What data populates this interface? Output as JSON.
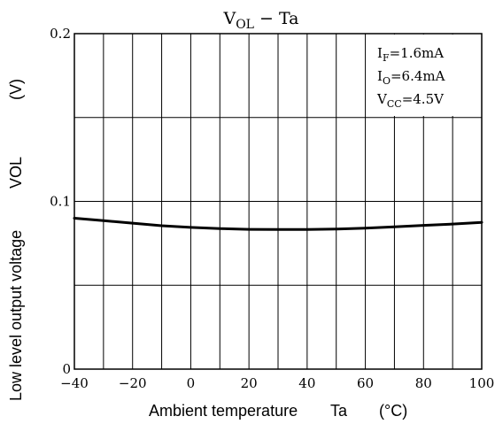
{
  "chart_data": {
    "type": "line",
    "title": {
      "main": "V",
      "sub": "OL",
      "rest": " − Ta"
    },
    "xlabel": {
      "text": "Ambient temperature",
      "symbol": "Ta",
      "unit": "(°C)"
    },
    "ylabel": {
      "text": "Low level output voltage",
      "symbol": "VOL",
      "unit": "(V)"
    },
    "xlim": [
      -40,
      100
    ],
    "ylim": [
      0,
      0.2
    ],
    "x_ticks": [
      {
        "value": -40,
        "label": "−40"
      },
      {
        "value": -20,
        "label": "−20"
      },
      {
        "value": 0,
        "label": "0"
      },
      {
        "value": 20,
        "label": "20"
      },
      {
        "value": 40,
        "label": "40"
      },
      {
        "value": 60,
        "label": "60"
      },
      {
        "value": 80,
        "label": "80"
      },
      {
        "value": 100,
        "label": "100"
      }
    ],
    "y_ticks": [
      {
        "value": 0,
        "label": "0"
      },
      {
        "value": 0.1,
        "label": "0.1"
      },
      {
        "value": 0.2,
        "label": "0.2"
      }
    ],
    "x_grid_step": 10,
    "y_grid_step": 0.05,
    "grid": true,
    "conditions": [
      {
        "main": "I",
        "sub": "F",
        "rest": "=1.6mA"
      },
      {
        "main": "I",
        "sub": "O",
        "rest": "=6.4mA"
      },
      {
        "main": "V",
        "sub": "CC",
        "rest": "=4.5V"
      }
    ],
    "conditions_position": "top-right",
    "series": [
      {
        "x": [
          -40,
          -30,
          -20,
          -10,
          0,
          10,
          20,
          30,
          40,
          50,
          60,
          70,
          80,
          90,
          100
        ],
        "values": [
          0.09,
          0.0885,
          0.087,
          0.0855,
          0.0845,
          0.0838,
          0.0833,
          0.0832,
          0.0832,
          0.0835,
          0.084,
          0.0848,
          0.0857,
          0.0865,
          0.0875
        ]
      }
    ]
  }
}
